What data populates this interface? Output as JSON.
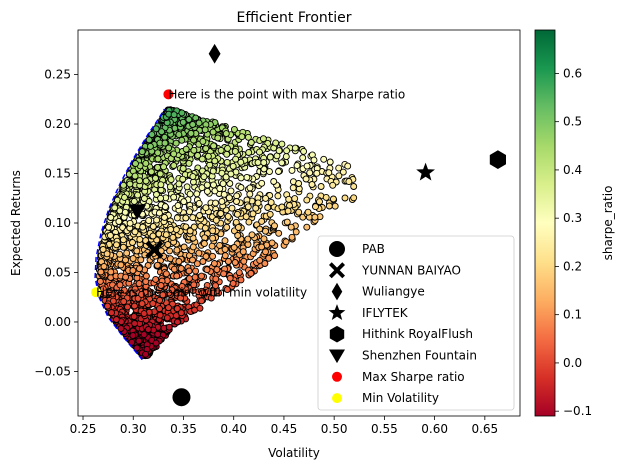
{
  "chart_data": {
    "type": "scatter",
    "title": "Efficient Frontier",
    "xlabel": "Volatility",
    "ylabel": "Expected Returns",
    "xlim": [
      0.245,
      0.685
    ],
    "ylim": [
      -0.095,
      0.295
    ],
    "x_ticks": [
      0.25,
      0.3,
      0.35,
      0.4,
      0.45,
      0.5,
      0.55,
      0.6,
      0.65
    ],
    "y_ticks": [
      -0.05,
      0.0,
      0.05,
      0.1,
      0.15,
      0.2,
      0.25
    ],
    "grid": false,
    "colorbar": {
      "label": "sharpe_ratio",
      "colormap": "RdYlGn",
      "range": [
        -0.11,
        0.69
      ],
      "ticks": [
        -0.1,
        0.0,
        0.1,
        0.2,
        0.3,
        0.4,
        0.5,
        0.6
      ],
      "colors": [
        "#a50026",
        "#d73027",
        "#f46d43",
        "#fdae61",
        "#fee08b",
        "#ffffbf",
        "#d9ef8b",
        "#a6d96a",
        "#66bd63",
        "#1a9850",
        "#006837"
      ]
    },
    "simulated_portfolios": {
      "count": 5000,
      "marker": "circle",
      "edge_color": "#000000",
      "description_hidden": true
    },
    "frontier_line": {
      "style": "dashed",
      "color": "#0000ff",
      "points": [
        [
          0.309,
          -0.038
        ],
        [
          0.29,
          -0.015
        ],
        [
          0.275,
          0.005
        ],
        [
          0.266,
          0.025
        ],
        [
          0.262,
          0.045
        ],
        [
          0.263,
          0.065
        ],
        [
          0.268,
          0.09
        ],
        [
          0.276,
          0.115
        ],
        [
          0.287,
          0.14
        ],
        [
          0.3,
          0.165
        ],
        [
          0.315,
          0.19
        ],
        [
          0.325,
          0.205
        ],
        [
          0.331,
          0.215
        ]
      ]
    },
    "assets": [
      {
        "name": "PAB",
        "marker": "circle",
        "x": 0.348,
        "y": -0.076
      },
      {
        "name": "YUNNAN BAIYAO",
        "marker": "X",
        "x": 0.321,
        "y": 0.073
      },
      {
        "name": "Wuliangye",
        "marker": "thin_diamond",
        "x": 0.381,
        "y": 0.271
      },
      {
        "name": "IFLYTEK",
        "marker": "star",
        "x": 0.591,
        "y": 0.151
      },
      {
        "name": "Hithink RoyalFlush",
        "marker": "hexagon",
        "x": 0.663,
        "y": 0.164
      },
      {
        "name": "Shenzhen Fountain",
        "marker": "triangle_down",
        "x": 0.304,
        "y": 0.112
      }
    ],
    "max_sharpe": {
      "label": "Max Sharpe ratio",
      "x": 0.335,
      "y": 0.23,
      "color": "#ff0000"
    },
    "min_volatility": {
      "label": "Min Volatility",
      "x": 0.263,
      "y": 0.03,
      "color": "#ffff00"
    },
    "annotations": [
      {
        "text": "Here is the point with max Sharpe ratio",
        "x": 0.335,
        "y": 0.23
      },
      {
        "text": "Here is the point with min volatility",
        "x": 0.263,
        "y": 0.03
      }
    ],
    "legend_position": "lower right"
  }
}
